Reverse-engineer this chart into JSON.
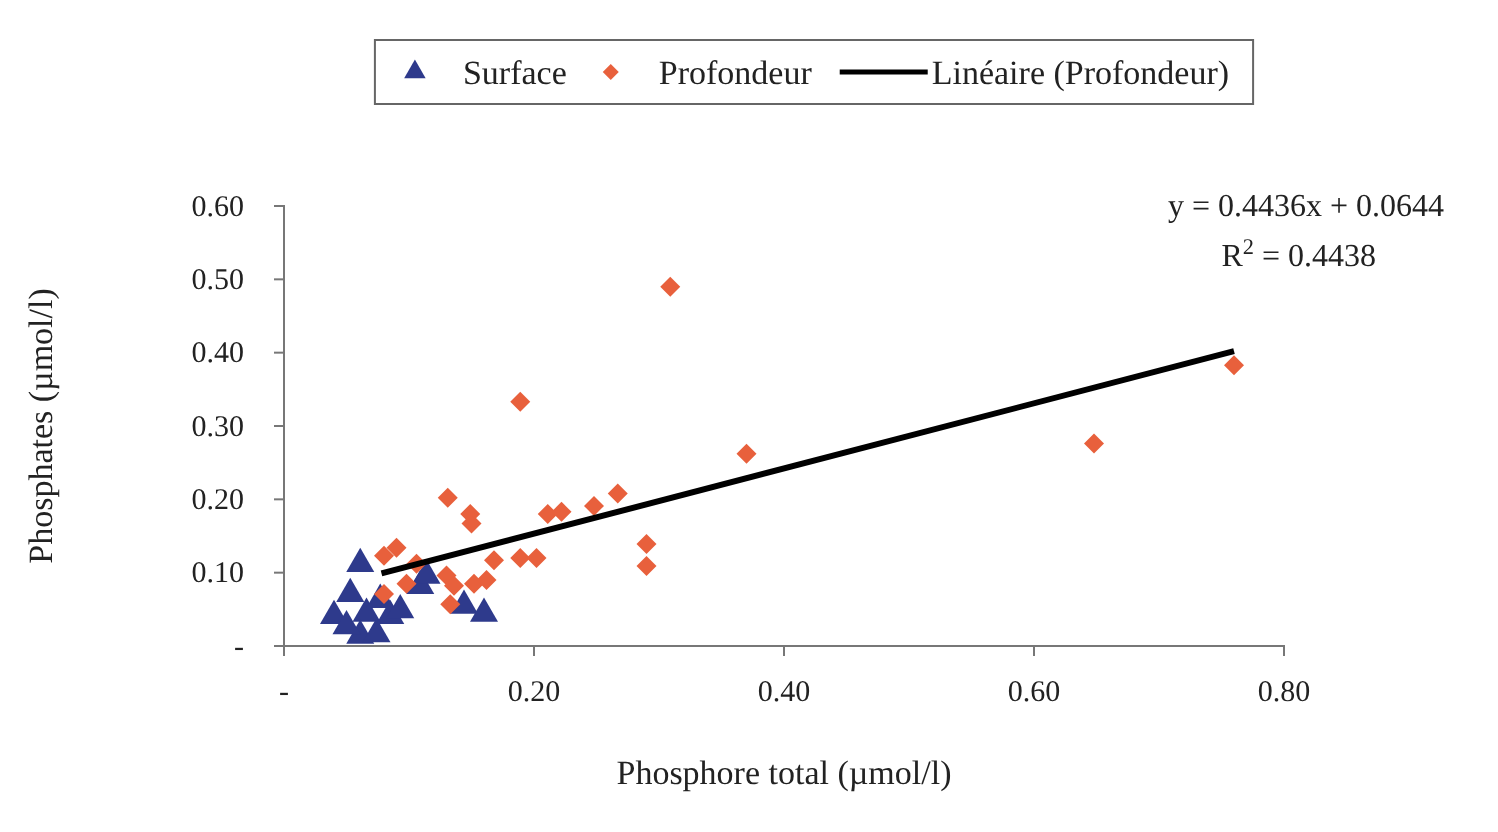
{
  "chart_data": {
    "type": "scatter",
    "xlabel": "Phosphore total (µmol/l)",
    "ylabel": "Phosphates (µmol/l)",
    "xlim": [
      0,
      0.8
    ],
    "xticks": [
      {
        "value": 0,
        "label": "-"
      },
      {
        "value": 0.2,
        "label": "0.20"
      },
      {
        "value": 0.4,
        "label": "0.40"
      },
      {
        "value": 0.6,
        "label": "0.60"
      },
      {
        "value": 0.8,
        "label": "0.80"
      }
    ],
    "ylim": [
      0,
      0.6
    ],
    "yticks": [
      {
        "value": 0,
        "label": "-"
      },
      {
        "value": 0.1,
        "label": "0.10"
      },
      {
        "value": 0.2,
        "label": "0.20"
      },
      {
        "value": 0.3,
        "label": "0.30"
      },
      {
        "value": 0.4,
        "label": "0.40"
      },
      {
        "value": 0.5,
        "label": "0.50"
      },
      {
        "value": 0.6,
        "label": "0.60"
      }
    ],
    "grid": false,
    "legend": "top",
    "annotations": [
      "y = 0.4436x + 0.0644",
      "R$^{2}$ = 0.4438"
    ],
    "series": [
      {
        "name": "Surface",
        "color": "#2e3a8c",
        "marker": "triangle",
        "x": [
          0.061,
          0.04,
          0.053,
          0.066,
          0.061,
          0.074,
          0.085,
          0.093,
          0.109,
          0.114,
          0.144,
          0.16,
          0.05,
          0.077
        ],
        "values": [
          0.112,
          0.041,
          0.071,
          0.044,
          0.014,
          0.016,
          0.041,
          0.049,
          0.082,
          0.096,
          0.055,
          0.044,
          0.027,
          0.063
        ]
      },
      {
        "name": "Profondeur",
        "color": "#e8603c",
        "marker": "diamond",
        "x": [
          0.309,
          0.189,
          0.37,
          0.131,
          0.149,
          0.15,
          0.211,
          0.222,
          0.248,
          0.267,
          0.29,
          0.29,
          0.189,
          0.202,
          0.168,
          0.08,
          0.09,
          0.106,
          0.08,
          0.098,
          0.13,
          0.136,
          0.133,
          0.152,
          0.162,
          0.648,
          0.76
        ],
        "values": [
          0.49,
          0.333,
          0.262,
          0.202,
          0.18,
          0.167,
          0.18,
          0.183,
          0.191,
          0.208,
          0.139,
          0.109,
          0.12,
          0.12,
          0.117,
          0.123,
          0.134,
          0.112,
          0.071,
          0.085,
          0.096,
          0.082,
          0.057,
          0.085,
          0.09,
          0.276,
          0.383
        ]
      },
      {
        "name": "Linéaire (Profondeur)",
        "type": "line",
        "color": "#000000",
        "marker": "none",
        "x": [
          0.078,
          0.76
        ],
        "values": [
          0.099,
          0.402
        ]
      }
    ]
  }
}
